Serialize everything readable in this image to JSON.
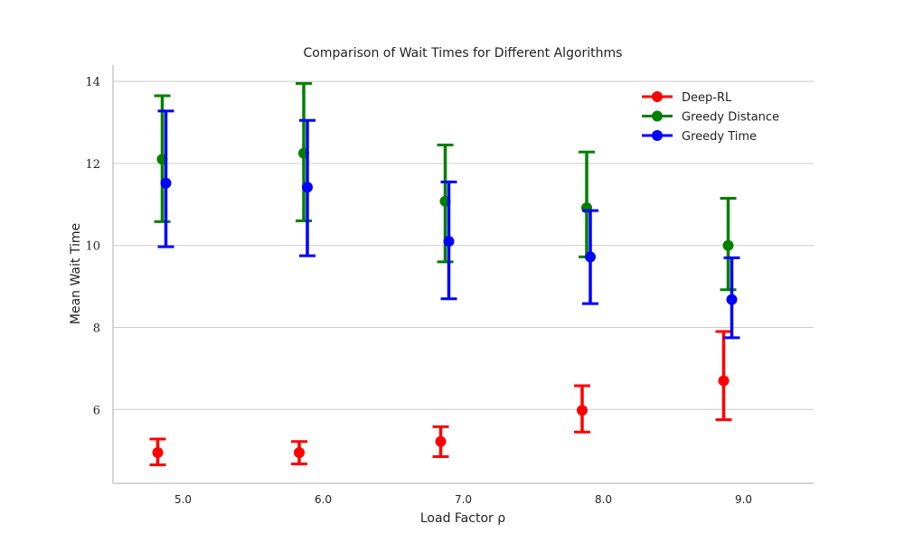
{
  "chart_data": {
    "type": "scatter",
    "title": "Comparison of Wait Times for Different Algorithms",
    "xlabel": "Load Factor ρ",
    "ylabel": "Mean Wait Time",
    "categories": [
      "5.0",
      "6.0",
      "7.0",
      "8.0",
      "9.0"
    ],
    "yticks": [
      "6",
      "8",
      "10",
      "12",
      "14"
    ],
    "ylim": [
      4.2,
      14.4
    ],
    "grid": "horizontal",
    "legend_position": "top-right",
    "series": [
      {
        "name": "Deep-RL",
        "color": "#ff0000",
        "values": [
          4.95,
          4.95,
          5.22,
          5.98,
          6.7
        ],
        "err_low": [
          4.65,
          4.67,
          4.85,
          5.45,
          5.75
        ],
        "err_high": [
          5.28,
          5.22,
          5.58,
          6.58,
          7.9
        ]
      },
      {
        "name": "Greedy Distance",
        "color": "#008000",
        "values": [
          12.1,
          12.25,
          11.08,
          10.92,
          10.0
        ],
        "err_low": [
          10.58,
          10.6,
          9.6,
          9.72,
          8.92
        ],
        "err_high": [
          13.65,
          13.95,
          12.45,
          12.28,
          11.15
        ]
      },
      {
        "name": "Greedy Time",
        "color": "#0000ff",
        "values": [
          11.52,
          11.42,
          10.1,
          9.72,
          8.68
        ],
        "err_low": [
          9.97,
          9.75,
          8.7,
          8.58,
          7.75
        ],
        "err_high": [
          13.28,
          13.05,
          11.55,
          10.85,
          9.7
        ]
      }
    ]
  }
}
